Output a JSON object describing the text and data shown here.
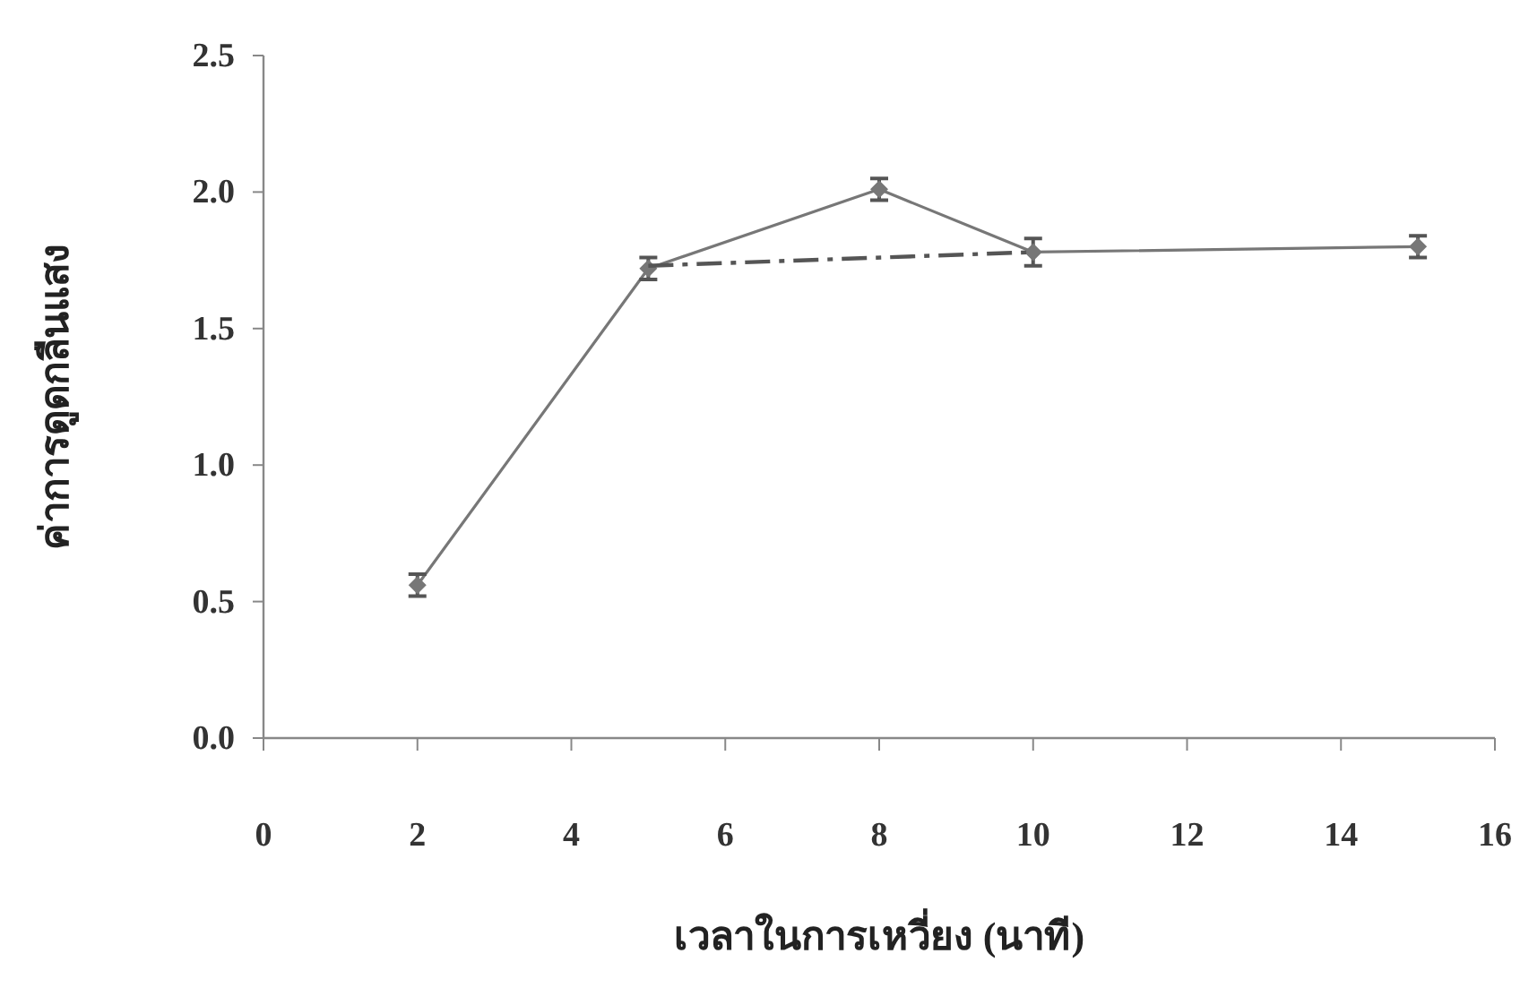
{
  "chart_data": {
    "type": "line",
    "xlabel": "เวลาในการเหวี่ยง (นาที)",
    "ylabel": "ค่าการดูดกลืนแสง",
    "xlim": [
      0,
      16
    ],
    "xticks": [
      0,
      2,
      4,
      6,
      8,
      10,
      12,
      14,
      16
    ],
    "ylim": [
      0,
      2.5
    ],
    "yticks": [
      {
        "value": 0,
        "label": "0.0"
      },
      {
        "value": 0.5,
        "label": "0.5"
      },
      {
        "value": 1,
        "label": "1.0"
      },
      {
        "value": 1.5,
        "label": "1.5"
      },
      {
        "value": 2,
        "label": "2.0"
      },
      {
        "value": 2.5,
        "label": "2.5"
      }
    ],
    "grid": false,
    "series": [
      {
        "color": "#777777",
        "x": [
          2,
          5,
          8,
          10,
          15
        ],
        "values": [
          0.56,
          1.72,
          2.01,
          1.78,
          1.8
        ],
        "errors": [
          0.04,
          0.04,
          0.04,
          0.05,
          0.04
        ],
        "marker": "diamond",
        "line_style": "solid"
      },
      {
        "color": "#555555",
        "x": [
          5,
          10
        ],
        "values": [
          1.73,
          1.78
        ],
        "line_style": "dashed"
      }
    ]
  }
}
